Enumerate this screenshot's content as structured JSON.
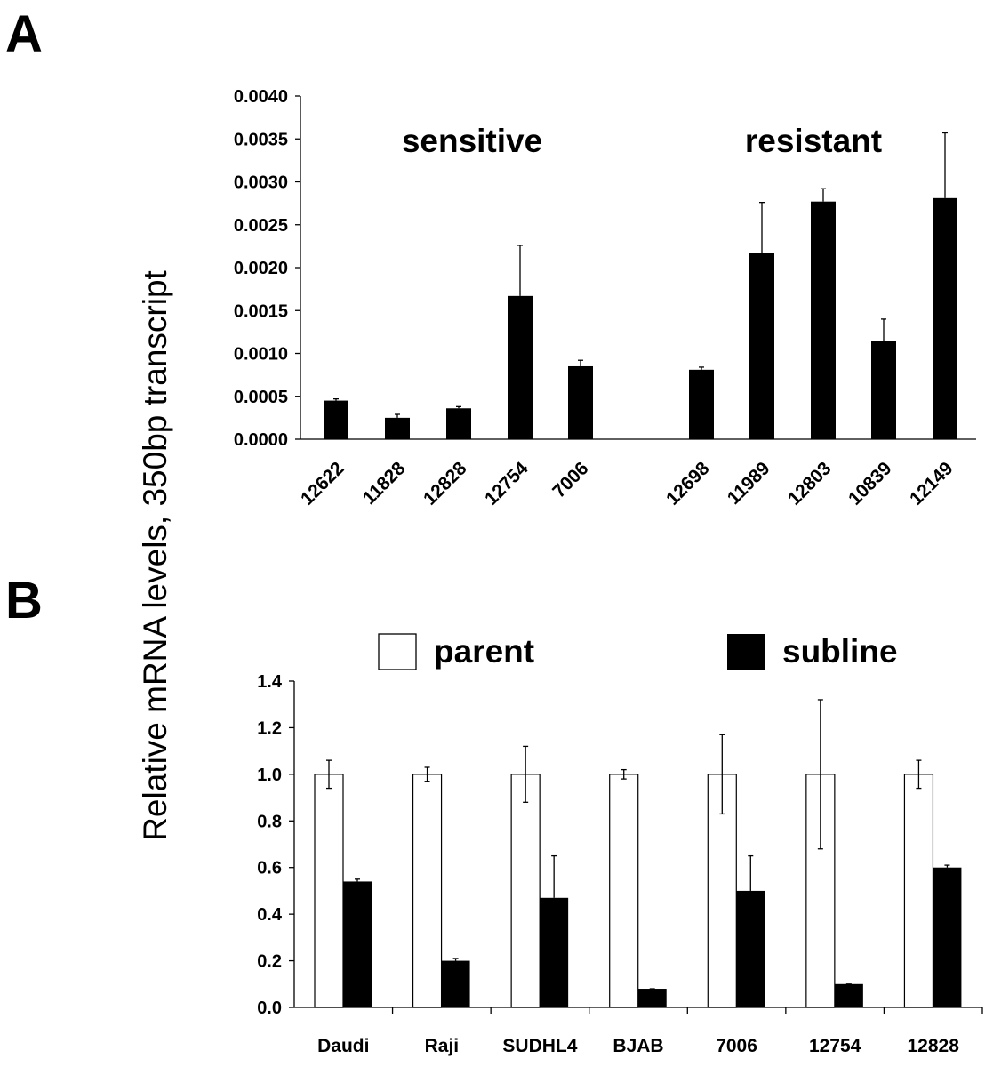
{
  "panels": {
    "a": "A",
    "b": "B"
  },
  "shared_ylabel": "Relative mRNA levels, 350bp transcript",
  "colors": {
    "bar_black": "#000000",
    "bar_white": "#ffffff",
    "axis": "#000000"
  },
  "chart_data": [
    {
      "type": "bar",
      "panel": "A",
      "title": "",
      "ylabel": "Relative mRNA levels, 350bp transcript",
      "ylim": [
        0,
        0.004
      ],
      "yticks": [
        "0.0000",
        "0.0005",
        "0.0010",
        "0.0015",
        "0.0020",
        "0.0025",
        "0.0030",
        "0.0035",
        "0.0040"
      ],
      "annotations": [
        "sensitive",
        "resistant"
      ],
      "categories": [
        "12622",
        "11828",
        "12828",
        "12754",
        "7006",
        "12698",
        "11989",
        "12803",
        "10839",
        "12149"
      ],
      "groups": [
        {
          "label": "sensitive",
          "categories": [
            "12622",
            "11828",
            "12828",
            "12754",
            "7006"
          ]
        },
        {
          "label": "resistant",
          "categories": [
            "12698",
            "11989",
            "12803",
            "10839",
            "12149"
          ]
        }
      ],
      "values": [
        0.00045,
        0.00025,
        0.00036,
        0.00167,
        0.00085,
        0.00081,
        0.00217,
        0.00277,
        0.00115,
        0.00281
      ],
      "errors": [
        2e-05,
        4e-05,
        2e-05,
        0.00059,
        7e-05,
        3e-05,
        0.00059,
        0.00015,
        0.00025,
        0.00076
      ],
      "grid": false
    },
    {
      "type": "bar",
      "panel": "B",
      "title": "",
      "ylabel": "Relative mRNA levels, 350bp transcript",
      "ylim": [
        0,
        1.4
      ],
      "yticks": [
        "0.0",
        "0.2",
        "0.4",
        "0.6",
        "0.8",
        "1.0",
        "1.2",
        "1.4"
      ],
      "categories": [
        "Daudi",
        "Raji",
        "SUDHL4",
        "BJAB",
        "7006",
        "12754",
        "12828"
      ],
      "legend_position": "top",
      "series": [
        {
          "name": "parent",
          "color": "#ffffff",
          "values": [
            1.0,
            1.0,
            1.0,
            1.0,
            1.0,
            1.0,
            1.0
          ],
          "errors": [
            0.06,
            0.03,
            0.12,
            0.02,
            0.17,
            0.32,
            0.06
          ]
        },
        {
          "name": "subline",
          "color": "#000000",
          "values": [
            0.54,
            0.2,
            0.47,
            0.08,
            0.5,
            0.1,
            0.6
          ],
          "errors": [
            0.01,
            0.01,
            0.18,
            0.0,
            0.15,
            0.0,
            0.01
          ]
        }
      ],
      "grid": false
    }
  ]
}
